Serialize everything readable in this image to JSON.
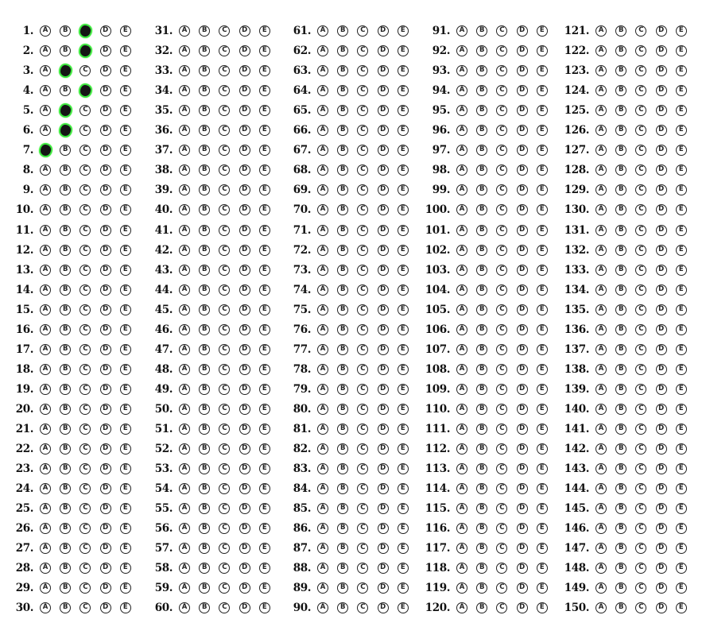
{
  "options": [
    "A",
    "B",
    "C",
    "D",
    "E"
  ],
  "colors": {
    "ink": "#111111",
    "bubble_outline": "#222222",
    "mark_fill": "#151515",
    "mark_highlight": "#3ee640"
  },
  "columns": [
    {
      "first": 1,
      "last": 30
    },
    {
      "first": 31,
      "last": 60
    },
    {
      "first": 61,
      "last": 90
    },
    {
      "first": 91,
      "last": 120
    },
    {
      "first": 121,
      "last": 150
    }
  ],
  "marked_answers": {
    "1": "C",
    "2": "C",
    "3": "B",
    "4": "C",
    "5": "B",
    "6": "B",
    "7": "A"
  }
}
